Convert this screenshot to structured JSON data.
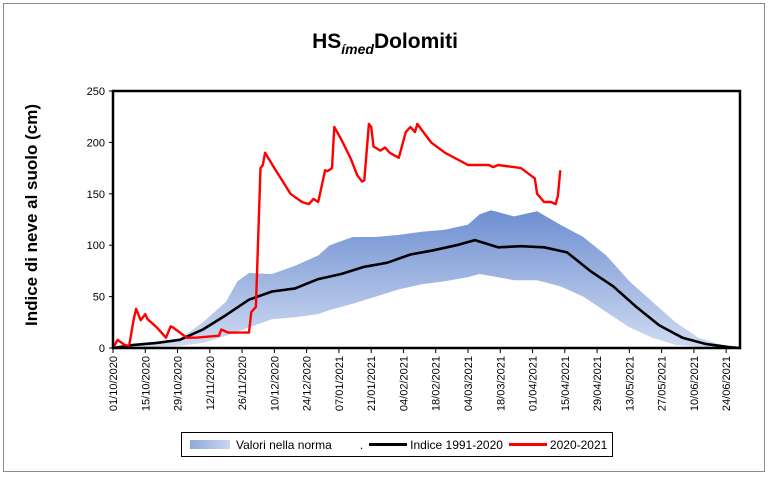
{
  "chart_data": {
    "type": "line",
    "title_main": "HS",
    "title_sub": "ímed",
    "title_tail": "Dolomiti",
    "ylabel": "Indice di neve al suolo (cm)",
    "xlabel": "",
    "ylim": [
      0,
      250
    ],
    "yticks": [
      "0",
      "50",
      "100",
      "150",
      "200",
      "250"
    ],
    "x_start": "2020-10-01",
    "x_end": "2021-06-30",
    "xticks": [
      "01/10/2020",
      "15/10/2020",
      "29/10/2020",
      "12/11/2020",
      "26/11/2020",
      "10/12/2020",
      "24/12/2020",
      "07/01/2021",
      "21/01/2021",
      "04/02/2021",
      "18/02/2021",
      "04/03/2021",
      "18/03/2021",
      "01/04/2021",
      "15/04/2021",
      "29/04/2021",
      "13/05/2021",
      "27/05/2021",
      "10/06/2021",
      "24/06/2021"
    ],
    "grid": false,
    "legend_position": "bottom",
    "legend": {
      "band_label": "Valori nella norma",
      "band_suffix": ".",
      "mean_label": "Indice 1991-2020",
      "season_label": "2020-2021"
    },
    "colors": {
      "band": "#7f9fd9",
      "mean": "#000000",
      "season": "#ff0000"
    },
    "series": [
      {
        "name": "Valori nella norma",
        "kind": "band",
        "x": [
          "2020-10-01",
          "2020-10-10",
          "2020-10-20",
          "2020-10-30",
          "2020-11-09",
          "2020-11-19",
          "2020-11-24",
          "2020-11-29",
          "2020-12-09",
          "2020-12-19",
          "2020-12-29",
          "2021-01-03",
          "2021-01-13",
          "2021-01-23",
          "2021-02-02",
          "2021-02-12",
          "2021-02-22",
          "2021-03-04",
          "2021-03-09",
          "2021-03-14",
          "2021-03-24",
          "2021-04-03",
          "2021-04-13",
          "2021-04-23",
          "2021-05-03",
          "2021-05-13",
          "2021-05-23",
          "2021-06-02",
          "2021-06-12",
          "2021-06-22",
          "2021-06-30"
        ],
        "upper": [
          0,
          2,
          5,
          9,
          25,
          45,
          65,
          73,
          72,
          80,
          90,
          100,
          108,
          108,
          110,
          113,
          115,
          120,
          130,
          134,
          128,
          133,
          120,
          108,
          90,
          65,
          45,
          25,
          10,
          3,
          0
        ],
        "lower": [
          0,
          0,
          1,
          2,
          5,
          12,
          16,
          20,
          28,
          30,
          33,
          37,
          43,
          50,
          57,
          62,
          65,
          69,
          72,
          70,
          66,
          66,
          60,
          50,
          35,
          20,
          10,
          3,
          1,
          0,
          0
        ]
      },
      {
        "name": "Indice 1991-2020",
        "x": [
          "2020-10-01",
          "2020-10-10",
          "2020-10-20",
          "2020-10-30",
          "2020-11-09",
          "2020-11-19",
          "2020-11-29",
          "2020-12-09",
          "2020-12-19",
          "2020-12-29",
          "2021-01-08",
          "2021-01-18",
          "2021-01-28",
          "2021-02-07",
          "2021-02-17",
          "2021-02-27",
          "2021-03-07",
          "2021-03-17",
          "2021-03-27",
          "2021-04-06",
          "2021-04-16",
          "2021-04-26",
          "2021-05-06",
          "2021-05-16",
          "2021-05-26",
          "2021-06-05",
          "2021-06-15",
          "2021-06-25",
          "2021-06-30"
        ],
        "values": [
          0,
          3,
          5,
          8,
          18,
          32,
          47,
          55,
          58,
          67,
          72,
          79,
          83,
          91,
          95,
          100,
          105,
          98,
          99,
          98,
          93,
          75,
          60,
          40,
          22,
          10,
          4,
          1,
          0
        ]
      },
      {
        "name": "2020-2021",
        "x": [
          "2020-10-01",
          "2020-10-03",
          "2020-10-06",
          "2020-10-08",
          "2020-10-10",
          "2020-10-11",
          "2020-10-13",
          "2020-10-15",
          "2020-10-16",
          "2020-10-20",
          "2020-10-24",
          "2020-10-26",
          "2020-10-27",
          "2020-11-02",
          "2020-11-06",
          "2020-11-16",
          "2020-11-17",
          "2020-11-20",
          "2020-11-26",
          "2020-11-29",
          "2020-11-30",
          "2020-12-02",
          "2020-12-04",
          "2020-12-05",
          "2020-12-06",
          "2020-12-10",
          "2020-12-17",
          "2020-12-22",
          "2020-12-25",
          "2020-12-27",
          "2020-12-29",
          "2021-01-01",
          "2021-01-02",
          "2021-01-04",
          "2021-01-05",
          "2021-01-08",
          "2021-01-12",
          "2021-01-15",
          "2021-01-17",
          "2021-01-18",
          "2021-01-20",
          "2021-01-21",
          "2021-01-22",
          "2021-01-25",
          "2021-01-27",
          "2021-01-29",
          "2021-02-02",
          "2021-02-05",
          "2021-02-07",
          "2021-02-09",
          "2021-02-10",
          "2021-02-12",
          "2021-02-16",
          "2021-02-22",
          "2021-03-04",
          "2021-03-12",
          "2021-03-13",
          "2021-03-15",
          "2021-03-17",
          "2021-03-27",
          "2021-04-02",
          "2021-04-03",
          "2021-04-06",
          "2021-04-09",
          "2021-04-11",
          "2021-04-12",
          "2021-04-13"
        ],
        "values": [
          0,
          8,
          3,
          2,
          28,
          38,
          27,
          33,
          28,
          20,
          10,
          21,
          20,
          10,
          10,
          12,
          18,
          15,
          15,
          15,
          35,
          40,
          175,
          178,
          190,
          175,
          150,
          142,
          140,
          145,
          142,
          173,
          172,
          175,
          215,
          203,
          185,
          168,
          162,
          163,
          218,
          215,
          196,
          192,
          195,
          190,
          185,
          210,
          215,
          210,
          218,
          212,
          200,
          190,
          178,
          178,
          178,
          176,
          178,
          175,
          165,
          150,
          142,
          142,
          140,
          148,
          172
        ]
      }
    ]
  }
}
